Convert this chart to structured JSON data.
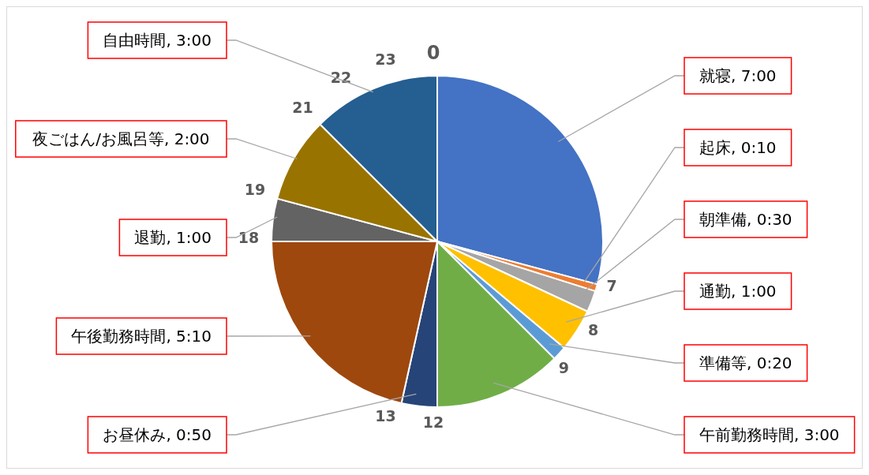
{
  "chart_data": {
    "type": "pie",
    "categories": [
      "就寝",
      "起床",
      "朝準備",
      "通勤",
      "準備等",
      "午前勤務時間",
      "お昼休み",
      "午後勤務時間",
      "退勤",
      "夜ごはん/お風呂等",
      "自由時間"
    ],
    "values": [
      420,
      10,
      30,
      60,
      20,
      180,
      50,
      310,
      60,
      120,
      180
    ],
    "value_labels": [
      "7:00",
      "0:10",
      "0:30",
      "1:00",
      "0:20",
      "3:00",
      "0:50",
      "5:10",
      "1:00",
      "2:00",
      "3:00"
    ],
    "colors": [
      "#4472c4",
      "#ed7d31",
      "#a5a5a5",
      "#ffc000",
      "#5b9bd5",
      "#70ad47",
      "#264478",
      "#9e480e",
      "#636363",
      "#997300",
      "#255e91"
    ],
    "annotations": [
      "0",
      "7",
      "8",
      "9",
      "12",
      "13",
      "18",
      "19",
      "21",
      "22",
      "23"
    ]
  }
}
